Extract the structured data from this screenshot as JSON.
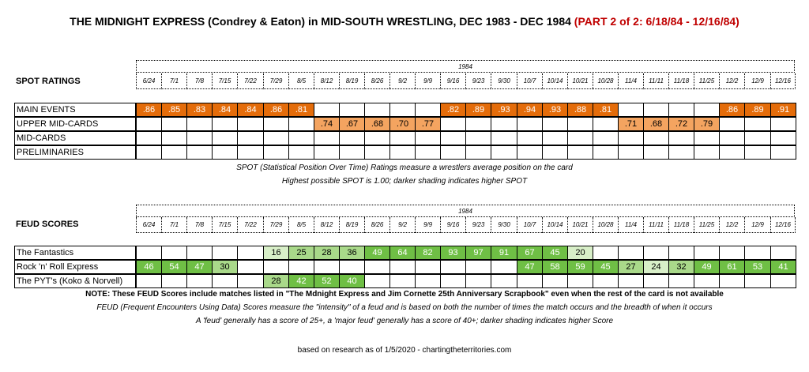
{
  "title": {
    "main": "THE MIDNIGHT EXPRESS (Condrey & Eaton) in MID-SOUTH WRESTLING, DEC 1983 - DEC 1984 ",
    "part": "(PART 2 of 2: 6/18/84 - 12/16/84)"
  },
  "colors": {
    "spot_high": "#e46c0a",
    "spot_mid": "#f4a460",
    "feud_major": "#6fbf45",
    "feud": "#a9d98a"
  },
  "spot": {
    "section_label": "SPOT RATINGS",
    "year": "1984",
    "weeks": [
      "6/24",
      "7/1",
      "7/8",
      "7/15",
      "7/22",
      "7/29",
      "8/5",
      "8/12",
      "8/19",
      "8/26",
      "9/2",
      "9/9",
      "9/16",
      "9/23",
      "9/30",
      "10/7",
      "10/14",
      "10/21",
      "10/28",
      "11/4",
      "11/11",
      "11/18",
      "11/25",
      "12/2",
      "12/9",
      "12/16"
    ],
    "rows": [
      {
        "label": "MAIN EVENTS",
        "values": [
          ".86",
          ".85",
          ".83",
          ".84",
          ".84",
          ".86",
          ".81",
          "",
          "",
          "",
          "",
          "",
          ".82",
          ".89",
          ".93",
          ".94",
          ".93",
          ".88",
          ".81",
          "",
          "",
          "",
          "",
          ".86",
          ".89",
          ".91"
        ]
      },
      {
        "label": "UPPER MID-CARDS",
        "values": [
          "",
          "",
          "",
          "",
          "",
          "",
          "",
          ".74",
          ".67",
          ".68",
          ".70",
          ".77",
          "",
          "",
          "",
          "",
          "",
          "",
          "",
          ".71",
          ".68",
          ".72",
          ".79",
          "",
          "",
          ""
        ]
      },
      {
        "label": "MID-CARDS",
        "values": [
          "",
          "",
          "",
          "",
          "",
          "",
          "",
          "",
          "",
          "",
          "",
          "",
          "",
          "",
          "",
          "",
          "",
          "",
          "",
          "",
          "",
          "",
          "",
          "",
          "",
          ""
        ]
      },
      {
        "label": "PRELIMINARIES",
        "values": [
          "",
          "",
          "",
          "",
          "",
          "",
          "",
          "",
          "",
          "",
          "",
          "",
          "",
          "",
          "",
          "",
          "",
          "",
          "",
          "",
          "",
          "",
          "",
          "",
          "",
          ""
        ]
      }
    ],
    "note1": "SPOT (Statistical Position Over Time) Ratings measure a wrestlers average position on the card",
    "note2": "Highest possible SPOT is 1.00; darker shading indicates higher SPOT"
  },
  "feud": {
    "section_label": "FEUD SCORES",
    "year": "1984",
    "weeks": [
      "6/24",
      "7/1",
      "7/8",
      "7/15",
      "7/22",
      "7/29",
      "8/5",
      "8/12",
      "8/19",
      "8/26",
      "9/2",
      "9/9",
      "9/16",
      "9/23",
      "9/30",
      "10/7",
      "10/14",
      "10/21",
      "10/28",
      "11/4",
      "11/11",
      "11/18",
      "11/25",
      "12/2",
      "12/9",
      "12/16"
    ],
    "rows": [
      {
        "label": "The Fantastics",
        "values": [
          "",
          "",
          "",
          "",
          "",
          "16",
          "25",
          "28",
          "36",
          "49",
          "64",
          "82",
          "93",
          "97",
          "91",
          "67",
          "45",
          "20",
          "",
          "",
          "",
          "",
          "",
          "",
          "",
          ""
        ]
      },
      {
        "label": "Rock 'n' Roll Express",
        "values": [
          "46",
          "54",
          "47",
          "30",
          "",
          "",
          "",
          "",
          "",
          "",
          "",
          "",
          "",
          "",
          "",
          "47",
          "58",
          "59",
          "45",
          "27",
          "24",
          "32",
          "49",
          "61",
          "53",
          "41"
        ]
      },
      {
        "label": "The PYT's (Koko & Norvell)",
        "values": [
          "",
          "",
          "",
          "",
          "",
          "28",
          "42",
          "52",
          "40",
          "",
          "",
          "",
          "",
          "",
          "",
          "",
          "",
          "",
          "",
          "",
          "",
          "",
          "",
          "",
          "",
          ""
        ]
      }
    ],
    "note_bold": "NOTE: These FEUD Scores include matches listed in \"The Mdnight Express and Jim Cornette 25th Anniversary Scrapbook\" even when the rest of the card is not available",
    "note1": "FEUD (Frequent Encounters Using Data) Scores measure the \"intensity\" of a feud and is based on both the number of times the match occurs and the breadth of when it occurs",
    "note2": "A 'feud' generally has a score of 25+, a 'major feud' generally has a score of 40+; darker shading indicates higher Score"
  },
  "footer": "based on research as of 1/5/2020   -   chartingtheterritories.com"
}
